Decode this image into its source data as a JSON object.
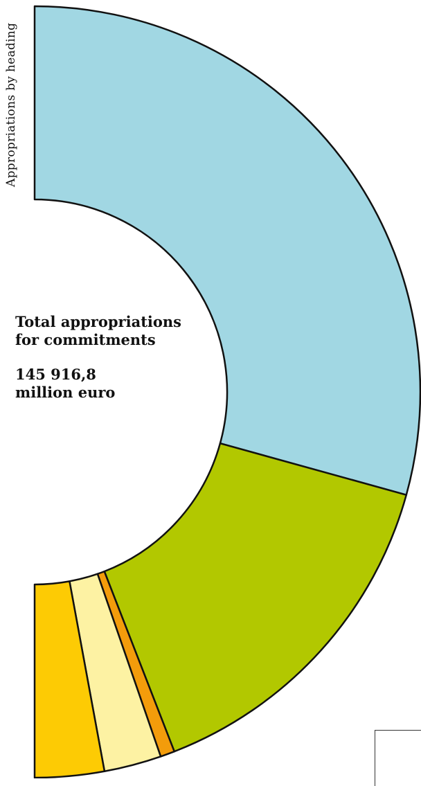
{
  "side_title": "Appropriations by heading",
  "center": {
    "title": "Total appropriations for commitments",
    "value_line1": "145 916,8",
    "value_line2": "million euro"
  },
  "chart_data": {
    "type": "pie",
    "variant": "half-donut (right half)",
    "total": 145916.8,
    "unit": "million euro",
    "slices_top_to_bottom": [
      {
        "value": 58.6,
        "color": "#a1d7e3"
      },
      {
        "value": 29.6,
        "color": "#b2c800"
      },
      {
        "value": 1.2,
        "color": "#f39c0b"
      },
      {
        "value": 4.8,
        "color": "#fdf2a3"
      },
      {
        "value": 5.8,
        "color": "#fdcb04"
      }
    ],
    "legend": "none"
  }
}
